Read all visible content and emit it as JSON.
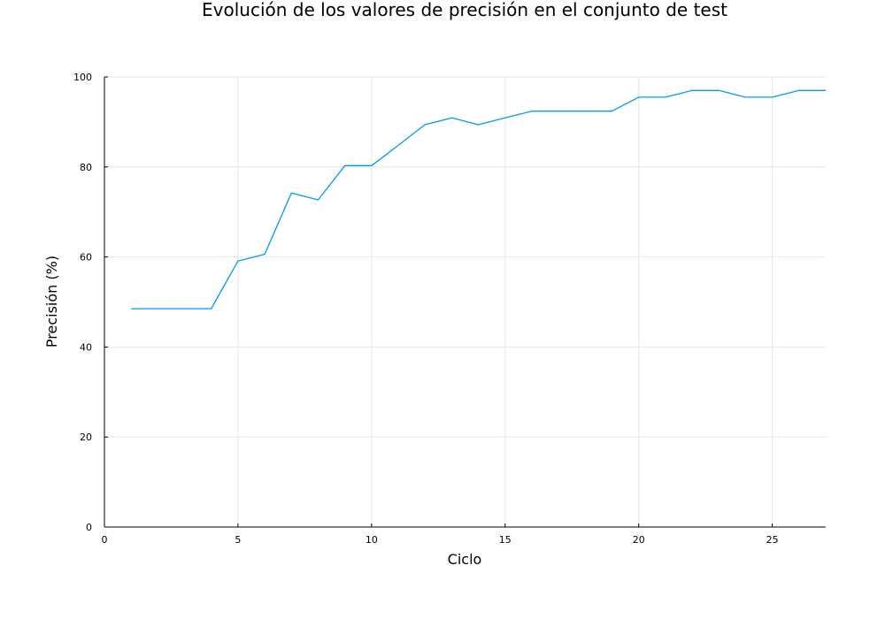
{
  "chart_data": {
    "type": "line",
    "title": "Evolución de los valores de precisión en el conjunto de test",
    "xlabel": "Ciclo",
    "ylabel": "Precisión (%)",
    "xlim": [
      0,
      27
    ],
    "ylim": [
      0,
      100
    ],
    "xticks": [
      0,
      5,
      10,
      15,
      20,
      25
    ],
    "yticks": [
      0,
      20,
      40,
      60,
      80,
      100
    ],
    "grid": true,
    "legend": "none",
    "series": [
      {
        "color": "#009af9",
        "x": [
          1,
          2,
          3,
          4,
          5,
          6,
          7,
          8,
          9,
          10,
          11,
          12,
          13,
          14,
          15,
          16,
          17,
          18,
          19,
          20,
          21,
          22,
          23,
          24,
          25,
          26,
          27
        ],
        "y": [
          48.5,
          48.5,
          48.5,
          48.5,
          59.1,
          60.6,
          74.2,
          72.7,
          80.3,
          80.3,
          84.8,
          89.4,
          90.9,
          89.4,
          90.9,
          92.4,
          92.4,
          92.4,
          92.4,
          95.5,
          95.5,
          97.0,
          97.0,
          95.5,
          95.5,
          97.0,
          97.0
        ]
      }
    ]
  }
}
